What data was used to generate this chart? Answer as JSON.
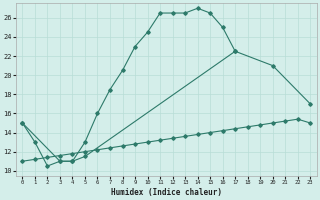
{
  "xlabel": "Humidex (Indice chaleur)",
  "bg_color": "#d4eeea",
  "line_color": "#2d7a6a",
  "grid_color": "#b8ddd7",
  "xlim": [
    -0.5,
    23.5
  ],
  "ylim": [
    9.5,
    27.5
  ],
  "xticks": [
    0,
    1,
    2,
    3,
    4,
    5,
    6,
    7,
    8,
    9,
    10,
    11,
    12,
    13,
    14,
    15,
    16,
    17,
    18,
    19,
    20,
    21,
    22,
    23
  ],
  "yticks": [
    10,
    12,
    14,
    16,
    18,
    20,
    22,
    24,
    26
  ],
  "series": [
    {
      "x": [
        0,
        1,
        2,
        3,
        4,
        5,
        6,
        7,
        8,
        9,
        10,
        11,
        12,
        13,
        14,
        15,
        16,
        17
      ],
      "y": [
        15.0,
        13.0,
        10.5,
        11.0,
        11.0,
        13.0,
        16.0,
        18.5,
        20.5,
        23.0,
        24.5,
        26.5,
        26.5,
        26.5,
        27.0,
        26.5,
        25.0,
        22.5
      ]
    },
    {
      "x": [
        0,
        3,
        4,
        5,
        17,
        20,
        23
      ],
      "y": [
        15.0,
        11.0,
        11.0,
        11.5,
        22.5,
        21.0,
        17.0
      ]
    },
    {
      "x": [
        0,
        1,
        2,
        3,
        4,
        5,
        6,
        7,
        8,
        9,
        10,
        11,
        12,
        13,
        14,
        15,
        16,
        17,
        18,
        19,
        20,
        21,
        22,
        23
      ],
      "y": [
        11.0,
        11.2,
        11.4,
        11.6,
        11.8,
        12.0,
        12.2,
        12.4,
        12.6,
        12.8,
        13.0,
        13.2,
        13.4,
        13.6,
        13.8,
        14.0,
        14.2,
        14.4,
        14.6,
        14.8,
        15.0,
        15.2,
        15.4,
        15.0
      ]
    }
  ]
}
